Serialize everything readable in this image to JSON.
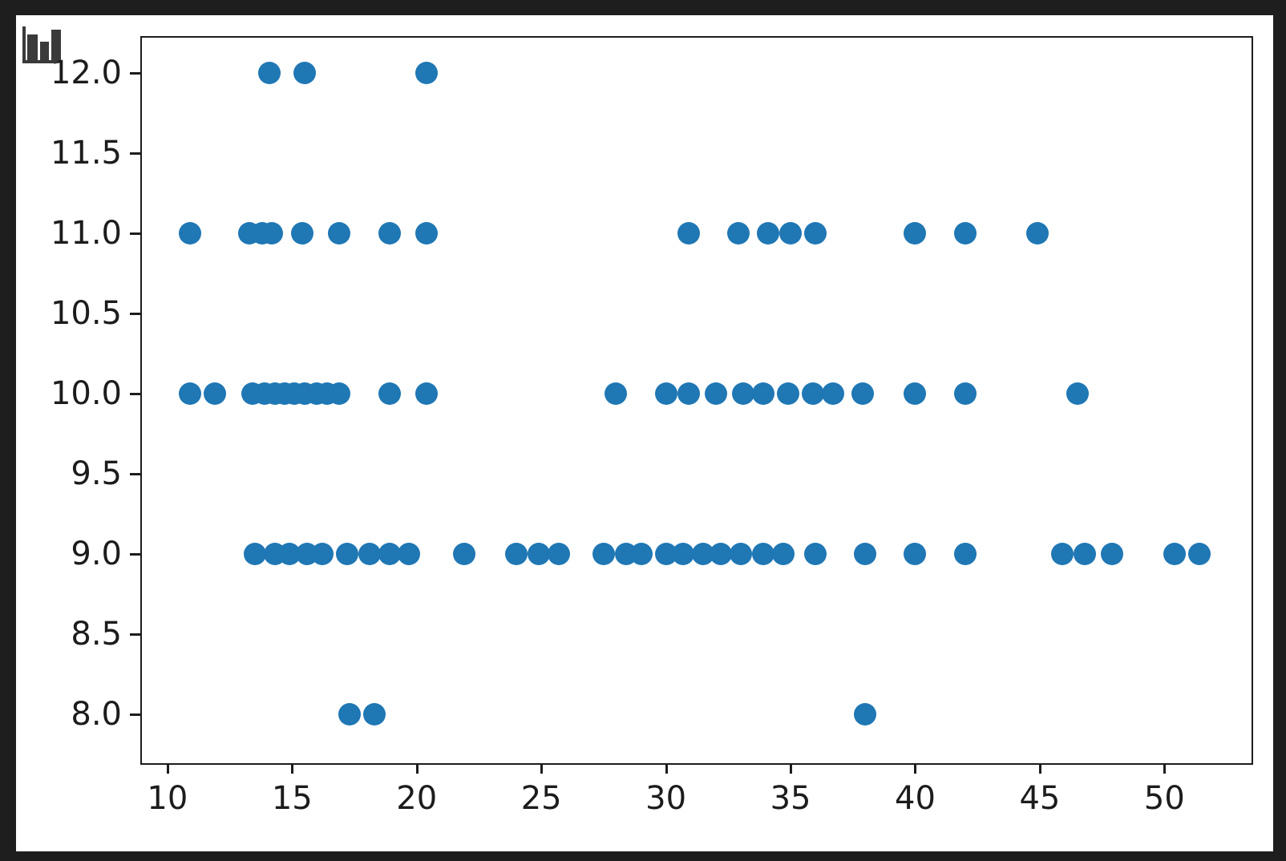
{
  "window": {
    "outer_background": "#1e1e1e",
    "figure_background": "#ffffff",
    "spine_color": "#1c1c1c",
    "tick_label_color": "#1c1c1c"
  },
  "icon": {
    "name": "bar-chart-icon",
    "color": "#3a3a3a"
  },
  "chart_data": {
    "type": "scatter",
    "title": "",
    "xlabel": "",
    "ylabel": "",
    "grid": false,
    "legend": null,
    "marker_color": "#1f77b4",
    "marker_radius_px": 14,
    "xlim": [
      8.91,
      53.43
    ],
    "ylim": [
      7.705,
      12.23
    ],
    "x_ticks": [
      10,
      15,
      20,
      25,
      30,
      35,
      40,
      45,
      50
    ],
    "x_tick_labels": [
      "10",
      "15",
      "20",
      "25",
      "30",
      "35",
      "40",
      "45",
      "50"
    ],
    "y_ticks": [
      8.0,
      8.5,
      9.0,
      9.5,
      10.0,
      10.5,
      11.0,
      11.5,
      12.0
    ],
    "y_tick_labels": [
      "8.0",
      "8.5",
      "9.0",
      "9.5",
      "10.0",
      "10.5",
      "11.0",
      "11.5",
      "12.0"
    ],
    "points": [
      [
        14.1,
        12
      ],
      [
        15.5,
        12
      ],
      [
        20.4,
        12
      ],
      [
        10.9,
        11
      ],
      [
        13.3,
        11
      ],
      [
        13.8,
        11
      ],
      [
        14.2,
        11
      ],
      [
        15.4,
        11
      ],
      [
        16.9,
        11
      ],
      [
        18.9,
        11
      ],
      [
        20.4,
        11
      ],
      [
        30.9,
        11
      ],
      [
        32.9,
        11
      ],
      [
        34.1,
        11
      ],
      [
        35.0,
        11
      ],
      [
        36.0,
        11
      ],
      [
        40.0,
        11
      ],
      [
        42.0,
        11
      ],
      [
        44.9,
        11
      ],
      [
        10.9,
        10
      ],
      [
        11.9,
        10
      ],
      [
        13.4,
        10
      ],
      [
        13.9,
        10
      ],
      [
        14.3,
        10
      ],
      [
        14.7,
        10
      ],
      [
        15.1,
        10
      ],
      [
        15.5,
        10
      ],
      [
        16.0,
        10
      ],
      [
        16.4,
        10
      ],
      [
        16.9,
        10
      ],
      [
        18.9,
        10
      ],
      [
        20.4,
        10
      ],
      [
        28.0,
        10
      ],
      [
        30.0,
        10
      ],
      [
        30.9,
        10
      ],
      [
        32.0,
        10
      ],
      [
        33.1,
        10
      ],
      [
        33.9,
        10
      ],
      [
        34.9,
        10
      ],
      [
        35.9,
        10
      ],
      [
        36.7,
        10
      ],
      [
        37.9,
        10
      ],
      [
        40.0,
        10
      ],
      [
        42.0,
        10
      ],
      [
        46.5,
        10
      ],
      [
        13.5,
        9
      ],
      [
        14.3,
        9
      ],
      [
        14.9,
        9
      ],
      [
        15.6,
        9
      ],
      [
        16.2,
        9
      ],
      [
        17.2,
        9
      ],
      [
        18.1,
        9
      ],
      [
        18.9,
        9
      ],
      [
        19.7,
        9
      ],
      [
        21.9,
        9
      ],
      [
        24.0,
        9
      ],
      [
        24.9,
        9
      ],
      [
        25.7,
        9
      ],
      [
        27.5,
        9
      ],
      [
        28.4,
        9
      ],
      [
        29.0,
        9
      ],
      [
        30.0,
        9
      ],
      [
        30.7,
        9
      ],
      [
        31.5,
        9
      ],
      [
        32.2,
        9
      ],
      [
        33.0,
        9
      ],
      [
        33.9,
        9
      ],
      [
        34.7,
        9
      ],
      [
        36.0,
        9
      ],
      [
        38.0,
        9
      ],
      [
        40.0,
        9
      ],
      [
        42.0,
        9
      ],
      [
        45.9,
        9
      ],
      [
        46.8,
        9
      ],
      [
        47.9,
        9
      ],
      [
        50.4,
        9
      ],
      [
        51.4,
        9
      ],
      [
        17.3,
        8
      ],
      [
        18.3,
        8
      ],
      [
        38.0,
        8
      ]
    ]
  }
}
